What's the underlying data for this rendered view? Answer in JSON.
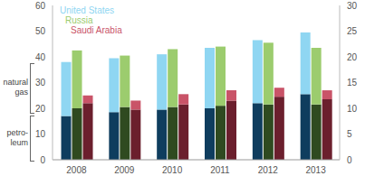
{
  "chart_data": {
    "type": "bar",
    "stacked": true,
    "grid": false,
    "categories": [
      "2008",
      "2009",
      "2010",
      "2011",
      "2012",
      "2013"
    ],
    "ylim": [
      0,
      60
    ],
    "yticks": [
      0,
      10,
      20,
      30,
      40,
      50,
      60
    ],
    "y2lim": [
      0,
      30
    ],
    "y2ticks": [
      0,
      5,
      10,
      15,
      20,
      25,
      30
    ],
    "groups": [
      {
        "name": "United States",
        "series": [
          {
            "name": "petro-leum",
            "color": "#0f3d5e",
            "values": [
              17,
              18.5,
              19.5,
              20,
              22,
              25.5
            ]
          },
          {
            "name": "natural gas",
            "color": "#8fd6f2",
            "values": [
              21,
              21,
              21.5,
              23.5,
              24.5,
              24
            ]
          }
        ]
      },
      {
        "name": "Russia",
        "series": [
          {
            "name": "petro-leum",
            "color": "#2f4a20",
            "values": [
              20,
              20.5,
              20.5,
              21,
              21.5,
              21.5
            ]
          },
          {
            "name": "natural gas",
            "color": "#9ccc6e",
            "values": [
              22.5,
              20,
              22.5,
              23,
              24,
              22
            ]
          }
        ]
      },
      {
        "name": "Saudi Arabia",
        "series": [
          {
            "name": "petro-leum",
            "color": "#6b1f2d",
            "values": [
              22,
              19.5,
              21.5,
              23,
              24.5,
              23.5
            ]
          },
          {
            "name": "natural gas",
            "color": "#c95468",
            "values": [
              3,
              3.5,
              4,
              4,
              3.5,
              3.5
            ]
          }
        ]
      }
    ]
  }
}
